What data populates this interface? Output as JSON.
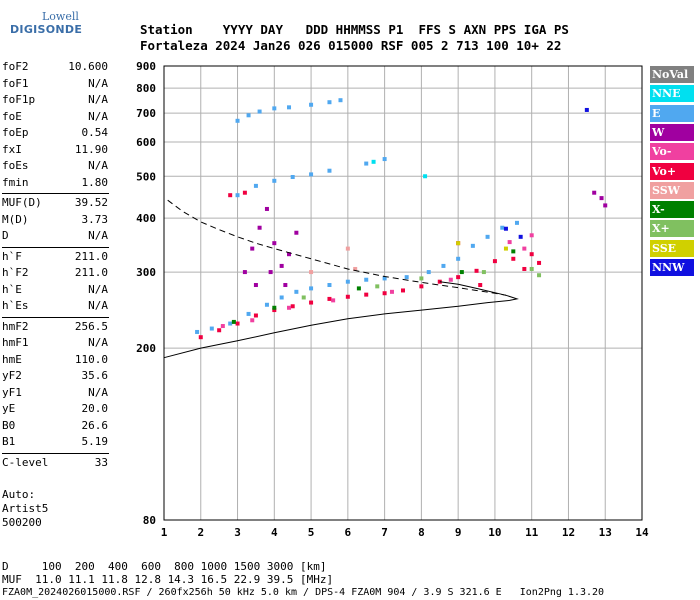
{
  "logo": {
    "line1": "Lowell",
    "line2": "DIGISONDE"
  },
  "header": {
    "row1": "Station    YYYY DAY   DDD HHMMSS P1  FFS S AXN PPS IGA PS",
    "row2": "Fortaleza 2024 Jan26 026 015000 RSF 005 2 713 100 10+ 22"
  },
  "params_group1": [
    {
      "name": "foF2",
      "value": "10.600"
    },
    {
      "name": "foF1",
      "value": "N/A"
    },
    {
      "name": "foF1p",
      "value": "N/A"
    },
    {
      "name": "foE",
      "value": "N/A"
    },
    {
      "name": "foEp",
      "value": "0.54"
    },
    {
      "name": "fxI",
      "value": "11.90"
    },
    {
      "name": "foEs",
      "value": "N/A"
    },
    {
      "name": "fmin",
      "value": "1.80"
    }
  ],
  "params_group2": [
    {
      "name": "MUF(D)",
      "value": "39.52"
    },
    {
      "name": "M(D)",
      "value": "3.73"
    },
    {
      "name": "D",
      "value": "N/A"
    }
  ],
  "params_group3": [
    {
      "name": "h`F",
      "value": "211.0"
    },
    {
      "name": "h`F2",
      "value": "211.0"
    },
    {
      "name": "h`E",
      "value": "N/A"
    },
    {
      "name": "h`Es",
      "value": "N/A"
    }
  ],
  "params_group4": [
    {
      "name": "hmF2",
      "value": "256.5"
    },
    {
      "name": "hmF1",
      "value": "N/A"
    },
    {
      "name": "hmE",
      "value": "110.0"
    },
    {
      "name": "yF2",
      "value": "35.6"
    },
    {
      "name": "yF1",
      "value": "N/A"
    },
    {
      "name": "yE",
      "value": "20.0"
    },
    {
      "name": "B0",
      "value": "26.6"
    },
    {
      "name": "B1",
      "value": "5.19"
    }
  ],
  "params_group5": [
    {
      "name": "C-level",
      "value": "33"
    }
  ],
  "autoscale": {
    "line1": "Auto:",
    "line2": "Artist5",
    "line3": "500200"
  },
  "legend": [
    {
      "label": "NoVal",
      "color": "#808080"
    },
    {
      "label": "NNE",
      "color": "#00e0f0"
    },
    {
      "label": "E",
      "color": "#50a8f0"
    },
    {
      "label": "W",
      "color": "#a000a0"
    },
    {
      "label": "Vo-",
      "color": "#f040a0"
    },
    {
      "label": "Vo+",
      "color": "#f00040"
    },
    {
      "label": "SSW",
      "color": "#f0a0a0"
    },
    {
      "label": "X-",
      "color": "#008000"
    },
    {
      "label": "X+",
      "color": "#80c060"
    },
    {
      "label": "SSE",
      "color": "#d0d000"
    },
    {
      "label": "NNW",
      "color": "#1010e0"
    }
  ],
  "footer": {
    "d_row": "D     100  200  400  600  800 1000 1500 3000 [km]",
    "muf_row": "MUF  11.0 11.1 11.8 12.8 14.3 16.5 22.9 39.5 [MHz]",
    "file_row": "FZA0M_2024026015000.RSF / 260fx256h 50 kHz 5.0 km / DPS-4 FZA0M 904 / 3.9 S 321.6 E   Ion2Png 1.3.20"
  },
  "chart_data": {
    "type": "scatter",
    "title": "",
    "xlabel": "",
    "ylabel": "",
    "xlim": [
      1,
      14
    ],
    "ylim": [
      80,
      900
    ],
    "y_scale": "log",
    "x_ticks": [
      1,
      2,
      3,
      4,
      5,
      6,
      7,
      8,
      9,
      10,
      11,
      12,
      13,
      14
    ],
    "y_ticks": [
      80,
      200,
      300,
      400,
      500,
      600,
      700,
      800,
      900
    ],
    "grid": true,
    "legend_position": "right",
    "series": [
      {
        "color": "#50a8f0",
        "points": [
          [
            1.9,
            218
          ],
          [
            2.3,
            222
          ],
          [
            2.8,
            228
          ],
          [
            3.3,
            240
          ],
          [
            3.8,
            252
          ],
          [
            4.2,
            262
          ],
          [
            4.6,
            270
          ],
          [
            5.0,
            275
          ],
          [
            5.5,
            280
          ],
          [
            6.0,
            285
          ],
          [
            6.5,
            288
          ],
          [
            7.0,
            290
          ],
          [
            7.6,
            292
          ],
          [
            8.2,
            300
          ],
          [
            8.6,
            310
          ],
          [
            9.0,
            322
          ],
          [
            9.4,
            345
          ],
          [
            9.8,
            362
          ],
          [
            10.2,
            380
          ],
          [
            10.6,
            390
          ],
          [
            3.0,
            452
          ],
          [
            3.5,
            475
          ],
          [
            4.0,
            488
          ],
          [
            4.5,
            498
          ],
          [
            5.0,
            505
          ],
          [
            5.5,
            515
          ],
          [
            6.5,
            535
          ],
          [
            7.0,
            548
          ],
          [
            3.0,
            672
          ],
          [
            3.3,
            692
          ],
          [
            3.6,
            706
          ],
          [
            4.0,
            718
          ],
          [
            4.4,
            722
          ],
          [
            5.0,
            732
          ],
          [
            5.5,
            742
          ],
          [
            5.8,
            750
          ]
        ]
      },
      {
        "color": "#a000a0",
        "points": [
          [
            3.2,
            300
          ],
          [
            3.4,
            340
          ],
          [
            3.6,
            380
          ],
          [
            3.8,
            420
          ],
          [
            4.0,
            350
          ],
          [
            4.2,
            310
          ],
          [
            4.4,
            330
          ],
          [
            4.6,
            370
          ],
          [
            3.9,
            300
          ],
          [
            3.5,
            280
          ],
          [
            4.3,
            280
          ],
          [
            12.7,
            458
          ],
          [
            13.0,
            428
          ],
          [
            12.9,
            445
          ]
        ]
      },
      {
        "color": "#f00040",
        "points": [
          [
            2.0,
            212
          ],
          [
            2.5,
            220
          ],
          [
            3.0,
            228
          ],
          [
            3.5,
            238
          ],
          [
            4.0,
            245
          ],
          [
            4.5,
            250
          ],
          [
            5.0,
            255
          ],
          [
            5.5,
            260
          ],
          [
            6.0,
            263
          ],
          [
            6.5,
            266
          ],
          [
            7.0,
            268
          ],
          [
            7.5,
            272
          ],
          [
            8.0,
            278
          ],
          [
            8.5,
            285
          ],
          [
            9.0,
            292
          ],
          [
            9.5,
            302
          ],
          [
            10.0,
            318
          ],
          [
            10.5,
            322
          ],
          [
            11.0,
            330
          ],
          [
            11.2,
            315
          ],
          [
            2.8,
            452
          ],
          [
            3.2,
            458
          ],
          [
            9.0,
            350
          ],
          [
            9.6,
            280
          ],
          [
            10.8,
            305
          ]
        ]
      },
      {
        "color": "#f040a0",
        "points": [
          [
            2.6,
            225
          ],
          [
            3.4,
            232
          ],
          [
            4.4,
            248
          ],
          [
            5.6,
            258
          ],
          [
            7.2,
            270
          ],
          [
            8.8,
            288
          ],
          [
            10.4,
            352
          ],
          [
            10.8,
            340
          ],
          [
            11.0,
            365
          ]
        ]
      },
      {
        "color": "#008000",
        "points": [
          [
            2.9,
            230
          ],
          [
            4.0,
            248
          ],
          [
            6.3,
            275
          ],
          [
            9.1,
            300
          ],
          [
            10.5,
            335
          ]
        ]
      },
      {
        "color": "#80c060",
        "points": [
          [
            4.8,
            262
          ],
          [
            6.8,
            278
          ],
          [
            8.0,
            290
          ],
          [
            9.7,
            300
          ],
          [
            11.0,
            305
          ],
          [
            11.2,
            295
          ]
        ]
      },
      {
        "color": "#f0a0a0",
        "points": [
          [
            5.0,
            300
          ],
          [
            6.2,
            305
          ],
          [
            6.0,
            340
          ]
        ]
      },
      {
        "color": "#d0d000",
        "points": [
          [
            9.0,
            350
          ],
          [
            10.3,
            340
          ]
        ]
      },
      {
        "color": "#1010e0",
        "points": [
          [
            10.3,
            378
          ],
          [
            10.7,
            362
          ],
          [
            12.5,
            712
          ]
        ]
      },
      {
        "color": "#00e0f0",
        "points": [
          [
            6.7,
            540
          ],
          [
            8.1,
            500
          ]
        ]
      }
    ],
    "lines": [
      {
        "style": "dashed",
        "points": [
          [
            1.1,
            440
          ],
          [
            1.5,
            415
          ],
          [
            2.0,
            392
          ],
          [
            2.5,
            376
          ],
          [
            3.0,
            362
          ],
          [
            3.5,
            350
          ],
          [
            4.0,
            340
          ],
          [
            5.0,
            322
          ],
          [
            6.0,
            305
          ],
          [
            7.0,
            293
          ],
          [
            8.0,
            284
          ],
          [
            9.0,
            276
          ],
          [
            9.5,
            272
          ],
          [
            10.0,
            268
          ],
          [
            10.3,
            265
          ]
        ]
      },
      {
        "style": "solid",
        "points": [
          [
            1.0,
            190
          ],
          [
            2.0,
            200
          ],
          [
            3.0,
            208
          ],
          [
            4.0,
            217
          ],
          [
            5.0,
            226
          ],
          [
            6.0,
            234
          ],
          [
            7.0,
            240
          ],
          [
            8.0,
            245
          ],
          [
            9.0,
            250
          ],
          [
            9.8,
            255
          ],
          [
            10.4,
            258
          ],
          [
            10.6,
            260
          ],
          [
            10.3,
            265
          ],
          [
            9.5,
            275
          ],
          [
            9.0,
            281
          ],
          [
            8.5,
            285
          ]
        ]
      }
    ]
  }
}
